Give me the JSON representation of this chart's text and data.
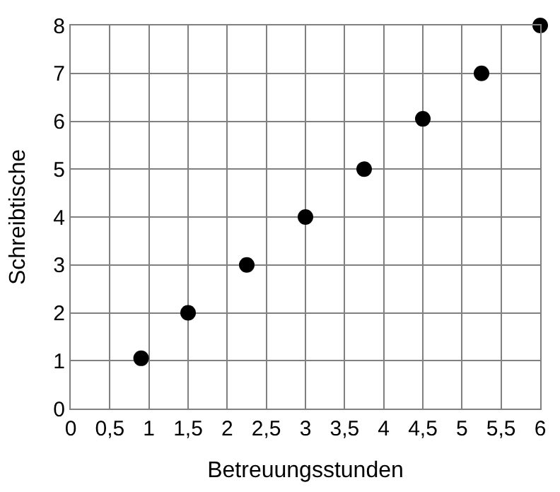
{
  "chart_data": {
    "type": "scatter",
    "xlabel": "Betreuungsstunden",
    "ylabel": "Schreibtische",
    "x": [
      0.9,
      1.5,
      2.25,
      3.0,
      3.75,
      4.5,
      5.25,
      6.0
    ],
    "values": [
      1.05,
      2.0,
      3.0,
      4.0,
      5.0,
      6.05,
      7.0,
      8.0
    ],
    "color": "#000000",
    "marker": "circle",
    "grid": true,
    "legend": false,
    "xlim": [
      0,
      6
    ],
    "ylim": [
      0,
      8
    ],
    "xticks": [
      0,
      {
        "value": 0.5,
        "label": "0,5"
      },
      1,
      {
        "value": 1.5,
        "label": "1,5"
      },
      2,
      {
        "value": 2.5,
        "label": "2,5"
      },
      3,
      {
        "value": 3.5,
        "label": "3,5"
      },
      4,
      {
        "value": 4.5,
        "label": "4,5"
      },
      5,
      {
        "value": 5.5,
        "label": "5,5"
      },
      6
    ],
    "yticks": [
      0,
      1,
      2,
      3,
      4,
      5,
      6,
      7,
      8
    ]
  }
}
